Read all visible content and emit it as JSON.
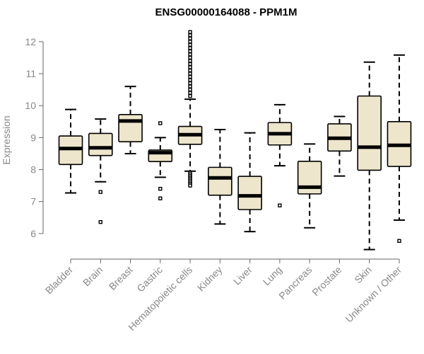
{
  "chart_data": {
    "type": "boxplot",
    "title": "ENSG00000164088 - PPM1M",
    "ylabel": "Expression",
    "xlabel": "",
    "ylim": [
      5.4,
      12.35
    ],
    "yticks": [
      6,
      7,
      8,
      9,
      10,
      11,
      12
    ],
    "grid": false,
    "colors": {
      "box_fill": "#ede6cc",
      "box_stroke": "#000000",
      "axis": "#666666",
      "text": "#888888"
    },
    "categories": [
      "Bladder",
      "Brain",
      "Breast",
      "Gastric",
      "Hematopoietic cells",
      "Kidney",
      "Liver",
      "Lung",
      "Pancreas",
      "Prostate",
      "Skin",
      "Unknown / Other"
    ],
    "boxes": [
      {
        "category": "Bladder",
        "whisker_low": 7.27,
        "q1": 8.16,
        "median": 8.66,
        "q3": 9.05,
        "whisker_high": 9.88,
        "outliers": []
      },
      {
        "category": "Brain",
        "whisker_low": 7.62,
        "q1": 8.44,
        "median": 8.68,
        "q3": 9.13,
        "whisker_high": 9.58,
        "outliers": [
          7.3,
          6.36
        ]
      },
      {
        "category": "Breast",
        "whisker_low": 8.5,
        "q1": 8.87,
        "median": 9.52,
        "q3": 9.72,
        "whisker_high": 10.6,
        "outliers": []
      },
      {
        "category": "Gastric",
        "whisker_low": 7.76,
        "q1": 8.25,
        "median": 8.53,
        "q3": 8.61,
        "whisker_high": 9.0,
        "outliers": [
          9.45,
          7.4,
          7.1
        ]
      },
      {
        "category": "Hematopoietic cells",
        "whisker_low": 7.95,
        "q1": 8.79,
        "median": 9.09,
        "q3": 9.35,
        "whisker_high": 10.2,
        "outliers": [
          12.3,
          12.2,
          12.1,
          12.0,
          11.9,
          11.8,
          11.7,
          11.6,
          11.5,
          11.4,
          11.3,
          11.2,
          11.1,
          11.0,
          10.9,
          10.8,
          10.7,
          10.6,
          10.5,
          10.4,
          10.3,
          7.9,
          7.85,
          7.8,
          7.75,
          7.7,
          7.65,
          7.6,
          7.55,
          7.5
        ]
      },
      {
        "category": "Kidney",
        "whisker_low": 6.3,
        "q1": 7.2,
        "median": 7.74,
        "q3": 8.07,
        "whisker_high": 9.25,
        "outliers": []
      },
      {
        "category": "Liver",
        "whisker_low": 6.06,
        "q1": 6.75,
        "median": 7.18,
        "q3": 7.79,
        "whisker_high": 9.15,
        "outliers": []
      },
      {
        "category": "Lung",
        "whisker_low": 8.12,
        "q1": 8.77,
        "median": 9.12,
        "q3": 9.47,
        "whisker_high": 10.03,
        "outliers": [
          6.88
        ]
      },
      {
        "category": "Pancreas",
        "whisker_low": 6.18,
        "q1": 7.24,
        "median": 7.45,
        "q3": 8.26,
        "whisker_high": 8.8,
        "outliers": []
      },
      {
        "category": "Prostate",
        "whisker_low": 7.8,
        "q1": 8.58,
        "median": 8.98,
        "q3": 9.43,
        "whisker_high": 9.66,
        "outliers": []
      },
      {
        "category": "Skin",
        "whisker_low": 5.5,
        "q1": 7.98,
        "median": 8.7,
        "q3": 10.3,
        "whisker_high": 11.36,
        "outliers": []
      },
      {
        "category": "Unknown / Other",
        "whisker_low": 6.42,
        "q1": 8.1,
        "median": 8.76,
        "q3": 9.5,
        "whisker_high": 11.58,
        "outliers": [
          5.77
        ]
      }
    ]
  }
}
